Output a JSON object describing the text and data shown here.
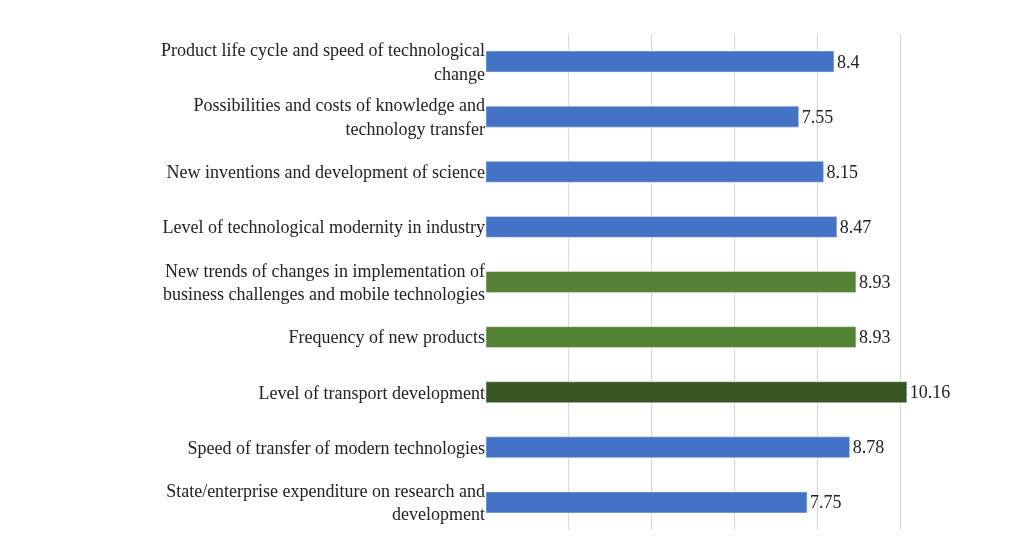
{
  "chart_data": {
    "type": "bar",
    "orientation": "horizontal",
    "categories": [
      "Product life cycle and speed of technological change",
      "Possibilities and costs of knowledge and technology transfer",
      "New inventions and development of science",
      "Level of technological modernity in industry",
      "New trends of changes in implementation of business challenges and mobile technologies",
      "Frequency of new products",
      "Level of transport development",
      "Speed of transfer of modern technologies",
      "State/enterprise expenditure on research and development"
    ],
    "values": [
      8.4,
      7.55,
      8.15,
      8.47,
      8.93,
      8.93,
      10.16,
      8.78,
      7.75
    ],
    "colors": [
      "#4472c4",
      "#4472c4",
      "#4472c4",
      "#4472c4",
      "#548235",
      "#548235",
      "#375623",
      "#4472c4",
      "#4472c4"
    ],
    "tick_labels": "y",
    "grid": "x",
    "data_labels": true,
    "legend": false
  }
}
